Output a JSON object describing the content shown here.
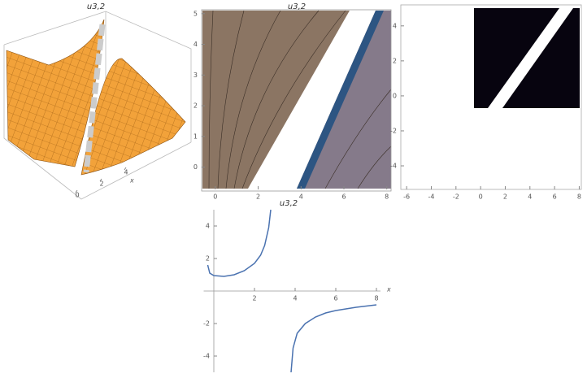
{
  "chart_data": [
    {
      "type": "surface",
      "title": "u3,2",
      "xticks": [
        0,
        2,
        4
      ],
      "x_label": "x"
    },
    {
      "type": "contour",
      "title": "u3,2",
      "xlim": [
        -0.6,
        8.2
      ],
      "ylim": [
        -0.7,
        5.1
      ],
      "xticks": [
        0,
        2,
        4,
        6,
        8
      ],
      "yticks": [
        0,
        1,
        2,
        3,
        4,
        5
      ]
    },
    {
      "type": "region",
      "xlim": [
        -7,
        8.3
      ],
      "ylim": [
        -5.3,
        5.2
      ],
      "xticks": [
        -6,
        -4,
        -2,
        0,
        2,
        4,
        6,
        8
      ],
      "yticks": [
        -4,
        -2,
        0,
        2,
        4
      ]
    },
    {
      "type": "line",
      "title": "u3,2",
      "x_label": "x",
      "xlim": [
        -0.5,
        8.2
      ],
      "ylim": [
        -5,
        5
      ],
      "xticks": [
        2,
        4,
        6,
        8
      ],
      "yticks": [
        -4,
        -2,
        2,
        4
      ],
      "series": [
        {
          "color": "#4a72b0",
          "x": [
            -0.3,
            -0.2,
            0,
            0.5,
            1,
            1.5,
            2,
            2.3,
            2.5,
            2.7,
            2.8,
            null,
            3.8,
            3.9,
            4.1,
            4.5,
            5,
            5.5,
            6,
            7,
            8
          ],
          "values": [
            1.6,
            1.1,
            0.95,
            0.9,
            1.0,
            1.25,
            1.7,
            2.2,
            2.8,
            3.9,
            5,
            null,
            -5,
            -3.5,
            -2.6,
            -2.0,
            -1.6,
            -1.35,
            -1.2,
            -1.0,
            -0.85
          ]
        }
      ]
    }
  ]
}
